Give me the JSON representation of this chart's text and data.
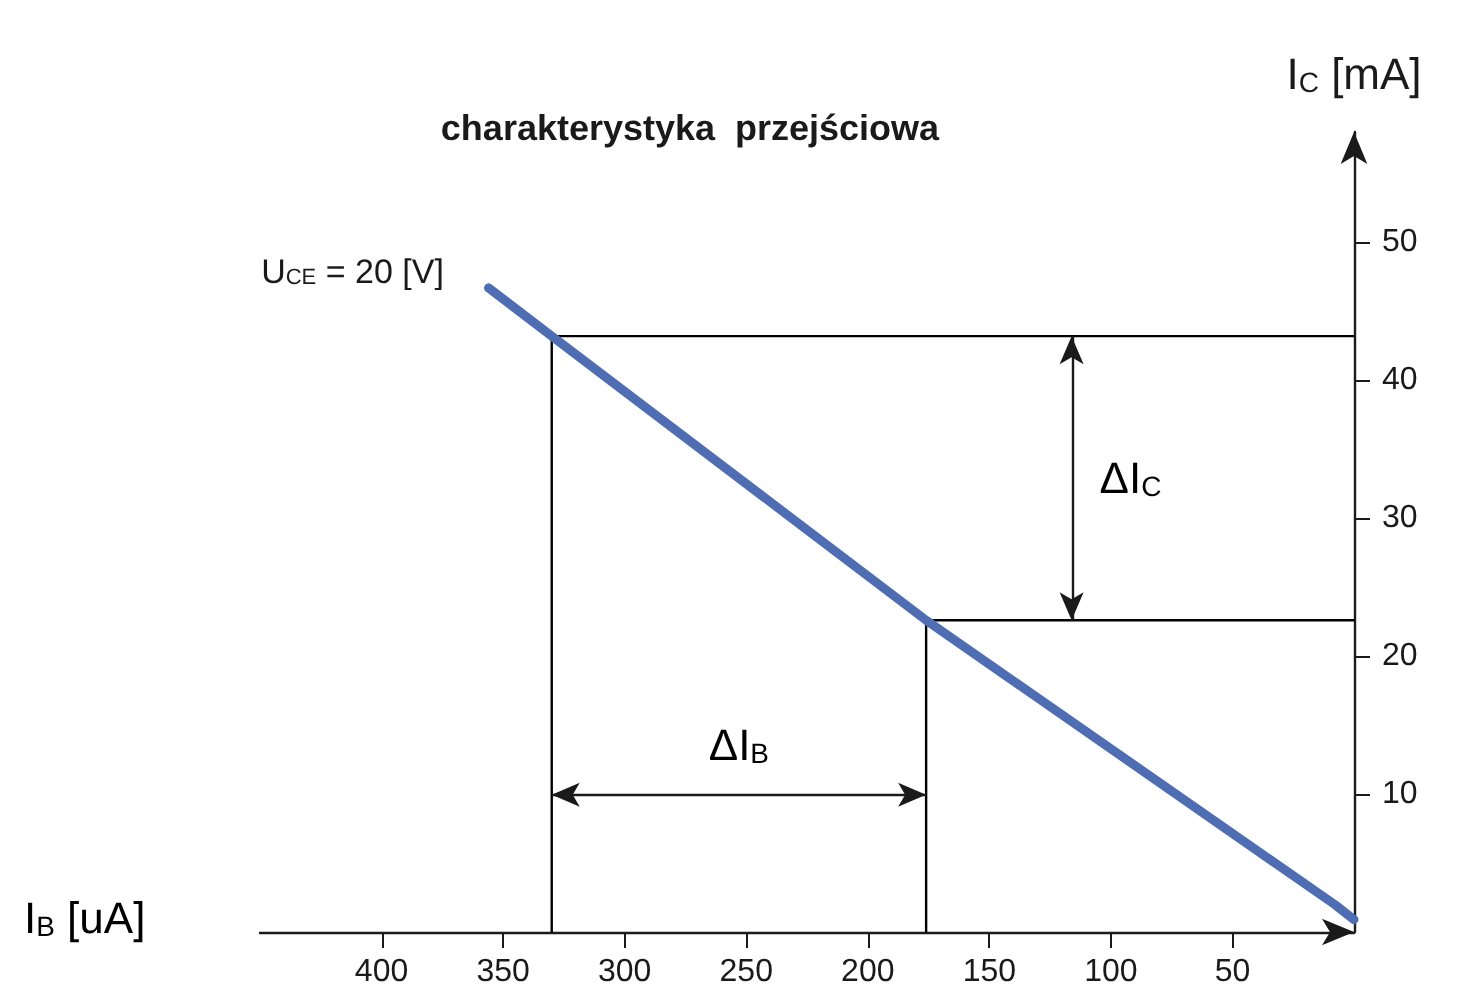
{
  "chart_data": {
    "type": "line",
    "title": "charakterystyka  przejściowa",
    "xlabel": "I$_{B}$ [uA]",
    "ylabel": "I$_{C}$ [mA]",
    "xlim": [
      450,
      0
    ],
    "xticks": [
      50,
      100,
      150,
      200,
      250,
      300,
      350,
      400
    ],
    "ylim": [
      0,
      58
    ],
    "yticks": [
      10,
      20,
      30,
      40,
      50
    ],
    "series": [
      {
        "name": "U$_{CE}$ = 20 [V]",
        "color": "#4f6db3",
        "x": [
          356,
          330,
          176,
          8,
          0
        ],
        "values": [
          46.7,
          43.2,
          22.6,
          2.0,
          0.9
        ]
      },
      {
        "color": "#000000",
        "x": [
          330,
          330,
          0
        ],
        "values": [
          0,
          43.2,
          43.2
        ]
      },
      {
        "color": "#000000",
        "x": [
          176,
          176,
          0
        ],
        "values": [
          0,
          22.6,
          22.6
        ]
      }
    ],
    "annotations": [
      "ΔI$_{C}$",
      "ΔI$_{B}$"
    ],
    "grid": false,
    "legend": false,
    "marker": "none",
    "line_style": "solid"
  }
}
